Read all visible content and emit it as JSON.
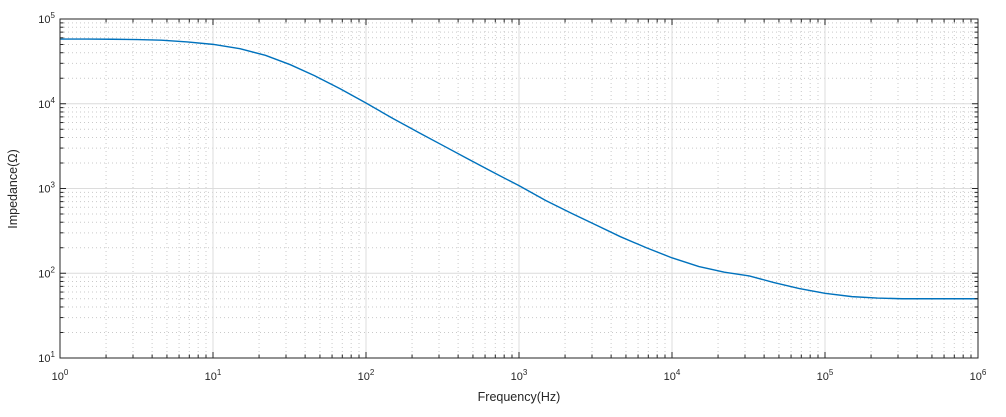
{
  "chart_data": {
    "type": "line",
    "title": "",
    "xlabel": "Frequency(Hz)",
    "ylabel": "Impedance(Ω)",
    "x_scale": "log",
    "y_scale": "log",
    "xlim": [
      1,
      1000000
    ],
    "ylim": [
      10,
      100000
    ],
    "x_tick_exponents": [
      0,
      1,
      2,
      3,
      4,
      5,
      6
    ],
    "y_tick_exponents": [
      1,
      2,
      3,
      4,
      5
    ],
    "grid": {
      "major": "solid",
      "minor": "dotted",
      "legend": "none"
    },
    "series": [
      {
        "name": "impedance",
        "color": "#0072BD",
        "x": [
          1,
          1.5,
          2.2,
          3.2,
          4.6,
          6.8,
          10,
          15,
          22,
          32,
          46,
          68,
          100,
          150,
          220,
          320,
          460,
          680,
          1000,
          1500,
          2200,
          3200,
          4600,
          6800,
          10000,
          15000,
          22000,
          32000,
          46000,
          68000,
          100000,
          150000,
          220000,
          320000,
          460000,
          680000,
          1000000
        ],
        "y": [
          58000,
          57900,
          57700,
          57200,
          56300,
          53600,
          50200,
          44600,
          37300,
          28900,
          21500,
          15000,
          10200,
          6700,
          4600,
          3200,
          2250,
          1550,
          1080,
          720,
          510,
          370,
          270,
          200,
          152,
          120,
          103,
          93,
          78,
          66,
          58,
          53,
          51,
          50,
          50,
          50,
          50
        ]
      }
    ],
    "style": {
      "axis_color": "#262626",
      "major_grid_color": "#dcdcdc",
      "minor_grid_color": "#c9c9c9",
      "background": "#ffffff",
      "line_width": 1.4
    }
  }
}
